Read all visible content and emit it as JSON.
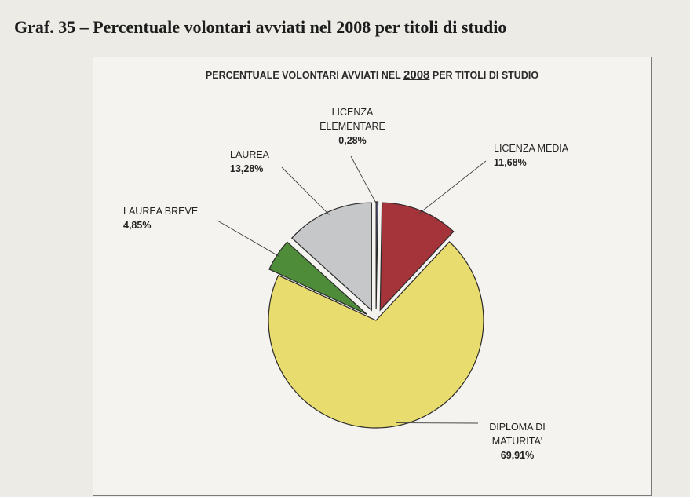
{
  "page_title": "Graf. 35 – Percentuale volontari avviati nel 2008 per titoli di studio",
  "chart_data": {
    "type": "pie",
    "title_prefix": "PERCENTUALE VOLONTARI AVVIATI NEL ",
    "title_year": "2008",
    "title_suffix": " PER TITOLI DI STUDIO",
    "slices": [
      {
        "label_lines": [
          "LICENZA",
          "ELEMENTARE"
        ],
        "value": 0.28,
        "value_text": "0,28%",
        "color": "#6a6a9a"
      },
      {
        "label_lines": [
          "LICENZA MEDIA"
        ],
        "value": 11.68,
        "value_text": "11,68%",
        "color": "#a4343a"
      },
      {
        "label_lines": [
          "DIPLOMA DI",
          "MATURITA'"
        ],
        "value": 69.91,
        "value_text": "69,91%",
        "color": "#e9dc6e"
      },
      {
        "label_lines": [
          "LAUREA BREVE"
        ],
        "value": 4.85,
        "value_text": "4,85%",
        "color": "#4e8c3a"
      },
      {
        "label_lines": [
          "LAUREA"
        ],
        "value": 13.28,
        "value_text": "13,28%",
        "color": "#c6c7c9"
      }
    ]
  }
}
